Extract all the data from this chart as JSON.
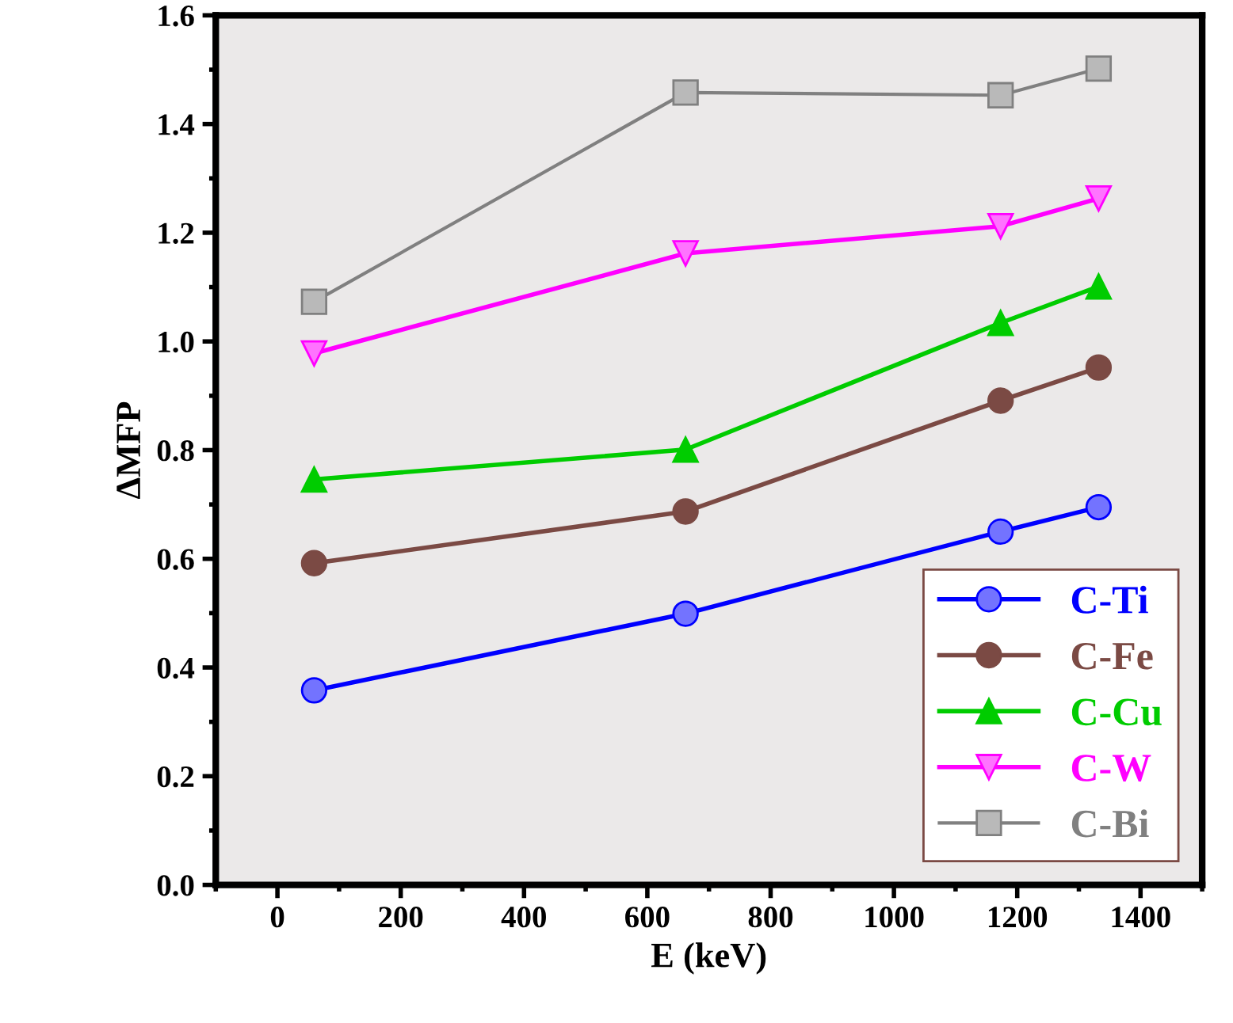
{
  "chart_data": {
    "type": "line",
    "xlabel": "E (keV)",
    "ylabel": "ΔMFP",
    "x": [
      59.5,
      662,
      1173,
      1332
    ],
    "series": [
      {
        "name": "C-Ti",
        "color": "#0000ff",
        "marker": "circle",
        "values": [
          0.358,
          0.499,
          0.65,
          0.695
        ]
      },
      {
        "name": "C-Fe",
        "color": "#7b4a44",
        "marker": "circle",
        "values": [
          0.592,
          0.687,
          0.891,
          0.952
        ]
      },
      {
        "name": "C-Cu",
        "color": "#00cc00",
        "marker": "triangle",
        "values": [
          0.746,
          0.801,
          1.034,
          1.101
        ]
      },
      {
        "name": "C-W",
        "color": "#ff00ff",
        "marker": "triangle_down",
        "values": [
          0.978,
          1.162,
          1.212,
          1.263
        ]
      },
      {
        "name": "C-Bi",
        "color": "#808080",
        "marker": "square",
        "values": [
          1.073,
          1.458,
          1.453,
          1.502
        ]
      }
    ],
    "xlim": [
      -100,
      1500
    ],
    "xticks": [
      0,
      200,
      400,
      600,
      800,
      1000,
      1200,
      1400
    ],
    "ylim": [
      0,
      1.6
    ],
    "yticks": [
      {
        "value": 0,
        "label": "0.0"
      },
      0.2,
      0.4,
      0.6,
      0.8,
      {
        "value": 1.0,
        "label": "1.0"
      },
      1.2,
      1.4,
      1.6
    ],
    "grid": false,
    "legend": "bottom right",
    "line_style": "solid"
  }
}
